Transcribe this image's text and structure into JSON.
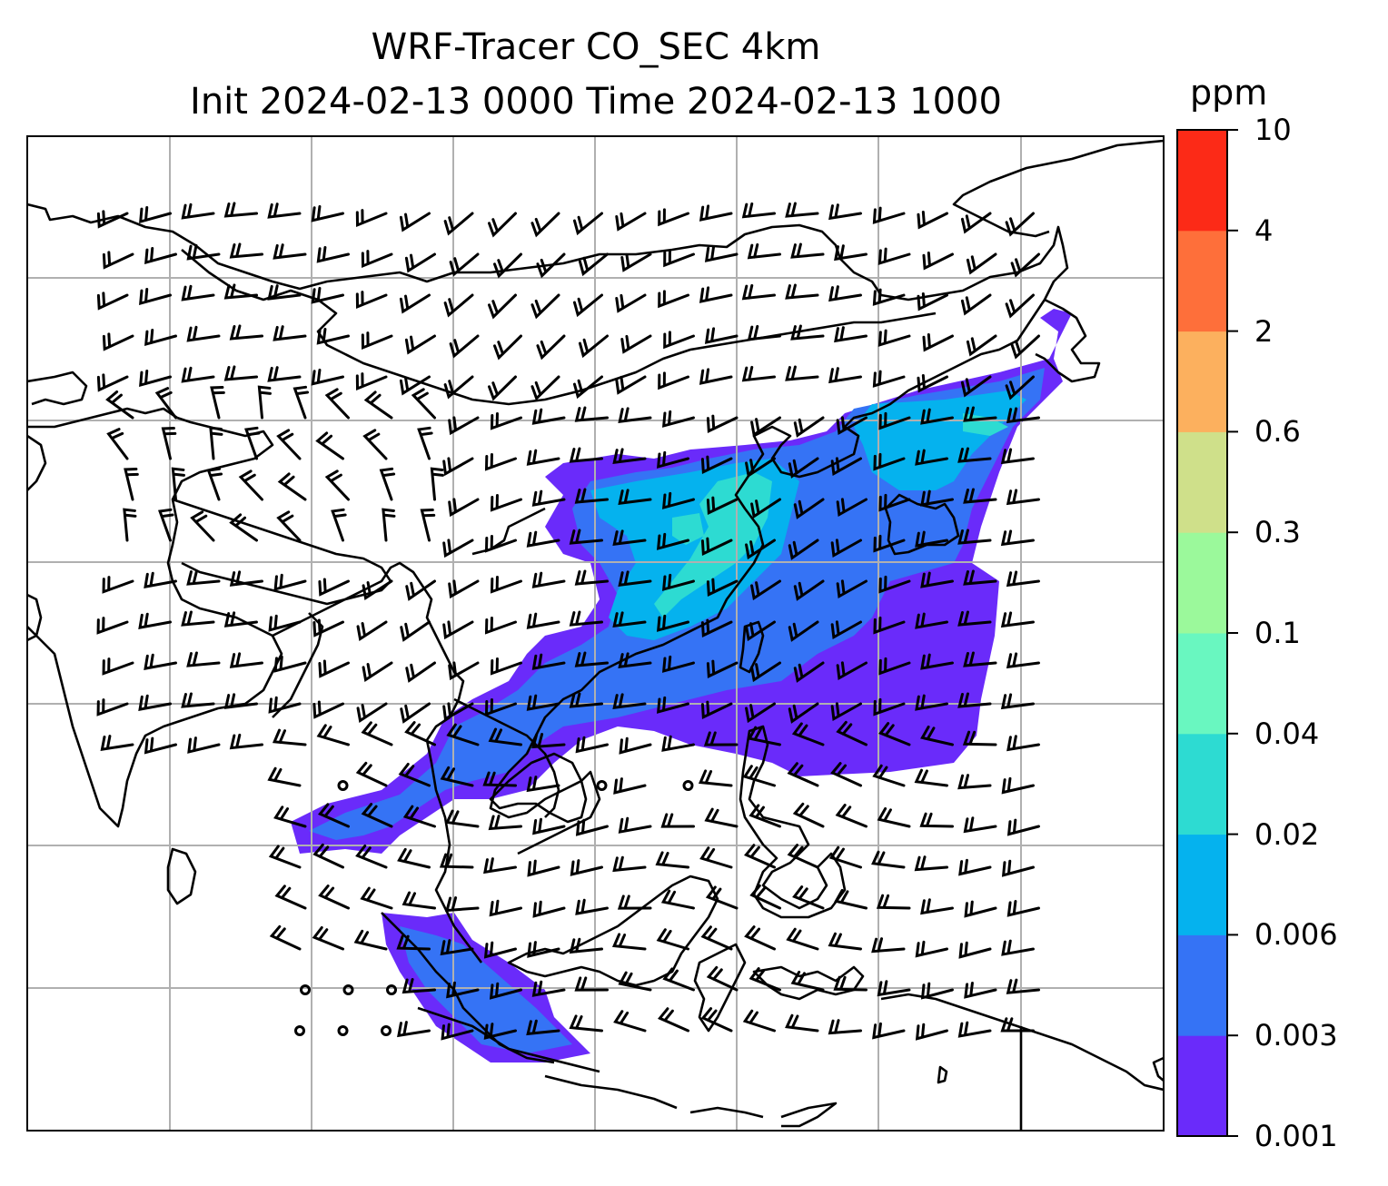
{
  "title": {
    "line1": "WRF-Tracer CO_SEC 4km",
    "line2": "Init 2024-02-13 0000 Time 2024-02-13 1000"
  },
  "colorbar": {
    "unit": "ppm",
    "levels": [
      "0.001",
      "0.003",
      "0.006",
      "0.02",
      "0.04",
      "0.1",
      "0.3",
      "0.6",
      "2",
      "4",
      "10"
    ],
    "colors": [
      "#6a2bfa",
      "#3573f5",
      "#05b2ee",
      "#2ddbd2",
      "#69f7c0",
      "#9bf99b",
      "#cfe08a",
      "#fcb05e",
      "#fe6f3a",
      "#fc2a17"
    ]
  },
  "map": {
    "field": "CO_SEC",
    "overlays": [
      "coastlines",
      "gridlines",
      "wind-barbs"
    ],
    "gridline_color": "#b0b0b0",
    "coastline_color": "#000000"
  }
}
